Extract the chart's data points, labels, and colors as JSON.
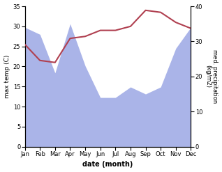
{
  "months": [
    "Jan",
    "Feb",
    "Mar",
    "Apr",
    "May",
    "Jun",
    "Jul",
    "Aug",
    "Sep",
    "Oct",
    "Nov",
    "Dec"
  ],
  "temperature": [
    25.5,
    21.5,
    21.0,
    27.0,
    27.5,
    29.0,
    29.0,
    30.0,
    34.0,
    33.5,
    31.0,
    29.5
  ],
  "precipitation": [
    34,
    32,
    21,
    35,
    23,
    14,
    14,
    17,
    15,
    17,
    28,
    34
  ],
  "temp_color": "#b04050",
  "precip_color": "#aab4e8",
  "ylabel_left": "max temp (C)",
  "ylabel_right": "med. precipitation\n(kg/m2)",
  "xlabel": "date (month)",
  "ylim_left": [
    0,
    35
  ],
  "ylim_right": [
    0,
    40
  ],
  "yticks_left": [
    0,
    5,
    10,
    15,
    20,
    25,
    30,
    35
  ],
  "yticks_right": [
    0,
    10,
    20,
    30,
    40
  ],
  "background_color": "#ffffff"
}
